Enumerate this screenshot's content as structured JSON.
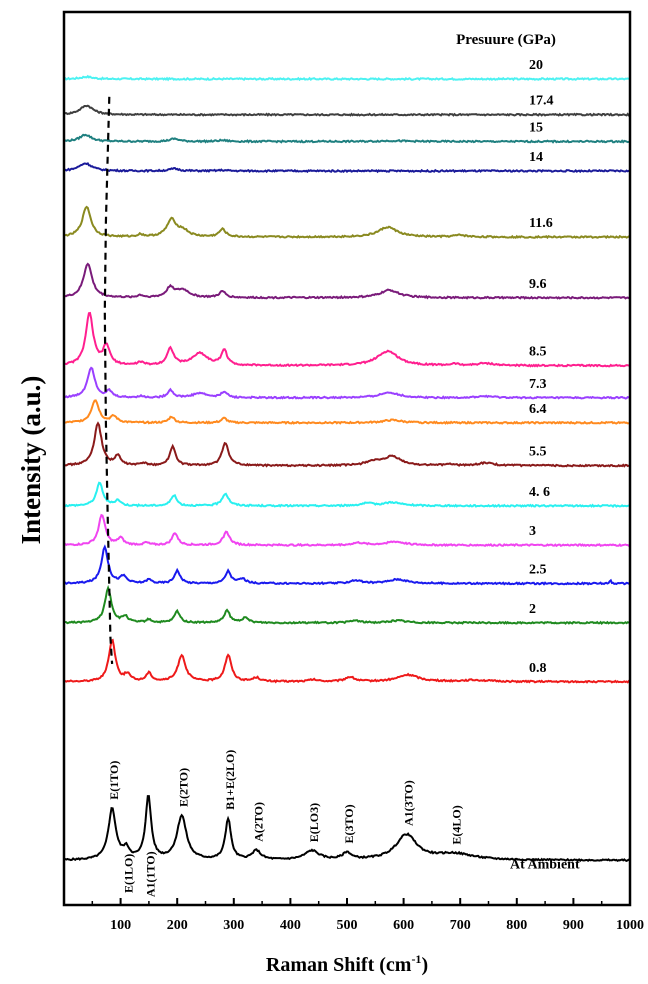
{
  "chart_data": {
    "type": "line",
    "title": "",
    "xlabel": "Raman Shift (cm",
    "xlabel_sup": "-1",
    "xlabel_close": ")",
    "ylabel": "Intensity (a.u.)",
    "xlim": [
      0,
      1000
    ],
    "x_ticks": [
      100,
      200,
      300,
      400,
      500,
      600,
      700,
      800,
      900,
      1000
    ],
    "x_tick_labels": [
      "100",
      "200",
      "300",
      "400",
      "500",
      "600",
      "700",
      "800",
      "900",
      "1000"
    ],
    "legend_title": "Presuure (GPa)",
    "grid": false,
    "series": [
      {
        "name": "20",
        "color": "#4df2f2",
        "offset": 0.925,
        "peaks": [
          [
            40,
            0.3,
            12
          ]
        ]
      },
      {
        "name": "17.4",
        "color": "#3f3f3f",
        "offset": 0.885,
        "peaks": [
          [
            40,
            1.2,
            14
          ]
        ]
      },
      {
        "name": "15",
        "color": "#1f8080",
        "offset": 0.855,
        "peaks": [
          [
            38,
            0.9,
            12
          ],
          [
            195,
            0.35,
            10
          ],
          [
            280,
            0.15,
            10
          ],
          [
            580,
            0.1,
            25
          ]
        ]
      },
      {
        "name": "14",
        "color": "#1a1a9a",
        "offset": 0.822,
        "peaks": [
          [
            38,
            1.0,
            14
          ],
          [
            195,
            0.3,
            10
          ],
          [
            280,
            0.1,
            10
          ]
        ]
      },
      {
        "name": "11.6",
        "color": "#8a8a20",
        "offset": 0.748,
        "peaks": [
          [
            40,
            4.0,
            9
          ],
          [
            135,
            0.3,
            6
          ],
          [
            190,
            2.2,
            10
          ],
          [
            210,
            0.8,
            12
          ],
          [
            280,
            1.0,
            7
          ],
          [
            572,
            1.3,
            20
          ],
          [
            700,
            0.25,
            12
          ]
        ]
      },
      {
        "name": "9.6",
        "color": "#7a1b7a",
        "offset": 0.68,
        "peaks": [
          [
            42,
            4.5,
            9
          ],
          [
            135,
            0.3,
            6
          ],
          [
            188,
            1.3,
            8
          ],
          [
            210,
            1.0,
            14
          ],
          [
            280,
            0.8,
            7
          ],
          [
            575,
            1.0,
            20
          ]
        ]
      },
      {
        "name": "8.5",
        "color": "#ff1f8f",
        "offset": 0.604,
        "peaks": [
          [
            45,
            6.8,
            8
          ],
          [
            75,
            2.5,
            7
          ],
          [
            135,
            0.4,
            6
          ],
          [
            188,
            2.2,
            7
          ],
          [
            240,
            1.6,
            16
          ],
          [
            283,
            2.0,
            6
          ],
          [
            572,
            1.9,
            22
          ],
          [
            690,
            0.2,
            8
          ],
          [
            745,
            0.3,
            16
          ]
        ]
      },
      {
        "name": "7.3",
        "color": "#9a40ff",
        "offset": 0.568,
        "peaks": [
          [
            48,
            4.0,
            8
          ],
          [
            80,
            0.8,
            6
          ],
          [
            135,
            0.2,
            6
          ],
          [
            188,
            1.0,
            6
          ],
          [
            240,
            0.6,
            15
          ],
          [
            283,
            0.8,
            6
          ],
          [
            575,
            0.7,
            20
          ],
          [
            745,
            0.2,
            15
          ]
        ]
      },
      {
        "name": "6.4",
        "color": "#ff8a1f",
        "offset": 0.54,
        "peaks": [
          [
            55,
            3.0,
            8
          ],
          [
            88,
            0.8,
            7
          ],
          [
            190,
            0.8,
            6
          ],
          [
            283,
            0.6,
            6
          ],
          [
            580,
            0.35,
            20
          ]
        ]
      },
      {
        "name": "5.5",
        "color": "#8a1a1a",
        "offset": 0.492,
        "peaks": [
          [
            60,
            5.5,
            8
          ],
          [
            95,
            1.2,
            6
          ],
          [
            140,
            0.3,
            6
          ],
          [
            192,
            2.5,
            6
          ],
          [
            285,
            3.0,
            7
          ],
          [
            545,
            0.5,
            14
          ],
          [
            580,
            1.2,
            18
          ],
          [
            680,
            0.2,
            8
          ],
          [
            745,
            0.35,
            16
          ]
        ]
      },
      {
        "name": "4. 6",
        "color": "#29f0f0",
        "offset": 0.447,
        "peaks": [
          [
            63,
            3.0,
            7
          ],
          [
            95,
            0.7,
            6
          ],
          [
            194,
            1.4,
            6
          ],
          [
            285,
            1.6,
            7
          ],
          [
            535,
            0.3,
            14
          ],
          [
            580,
            0.45,
            18
          ]
        ]
      },
      {
        "name": "3",
        "color": "#f045f0",
        "offset": 0.403,
        "peaks": [
          [
            67,
            4.0,
            7
          ],
          [
            100,
            0.9,
            6
          ],
          [
            145,
            0.3,
            6
          ],
          [
            196,
            1.6,
            6
          ],
          [
            287,
            1.7,
            7
          ],
          [
            520,
            0.3,
            12
          ],
          [
            585,
            0.45,
            20
          ]
        ]
      },
      {
        "name": "2.5",
        "color": "#1a1aee",
        "offset": 0.36,
        "peaks": [
          [
            72,
            4.8,
            7
          ],
          [
            105,
            0.9,
            7
          ],
          [
            150,
            0.5,
            6
          ],
          [
            200,
            1.7,
            6
          ],
          [
            290,
            1.6,
            6
          ],
          [
            315,
            0.6,
            8
          ],
          [
            515,
            0.4,
            12
          ],
          [
            590,
            0.55,
            20
          ],
          [
            965,
            0.5,
            1.5
          ]
        ]
      },
      {
        "name": "2",
        "color": "#1f8a1f",
        "offset": 0.316,
        "peaks": [
          [
            78,
            4.5,
            7
          ],
          [
            108,
            0.8,
            6
          ],
          [
            150,
            0.4,
            6
          ],
          [
            200,
            1.5,
            6
          ],
          [
            288,
            1.6,
            6
          ],
          [
            320,
            0.6,
            8
          ],
          [
            515,
            0.3,
            10
          ],
          [
            590,
            0.3,
            18
          ]
        ]
      },
      {
        "name": "0.8",
        "color": "#ee1a1a",
        "offset": 0.25,
        "peaks": [
          [
            85,
            5.5,
            7
          ],
          [
            112,
            0.9,
            6
          ],
          [
            150,
            1.1,
            6
          ],
          [
            208,
            3.5,
            8
          ],
          [
            290,
            3.5,
            7
          ],
          [
            340,
            0.5,
            8
          ],
          [
            440,
            0.25,
            10
          ],
          [
            505,
            0.6,
            10
          ],
          [
            608,
            0.9,
            22
          ],
          [
            725,
            0.2,
            30
          ]
        ]
      }
    ],
    "ambient": {
      "name": "At Ambient",
      "color": "#000000",
      "offset": 0.05,
      "peaks": [
        [
          85,
          6.7,
          8
        ],
        [
          110,
          1.3,
          7
        ],
        [
          149,
          8.3,
          6
        ],
        [
          208,
          5.8,
          10
        ],
        [
          290,
          5.4,
          6
        ],
        [
          340,
          1.2,
          9
        ],
        [
          438,
          1.2,
          15
        ],
        [
          500,
          0.9,
          9
        ],
        [
          605,
          3.3,
          22
        ],
        [
          690,
          0.8,
          40
        ]
      ],
      "assignments": [
        "E(1TO)",
        "E(1LO)",
        "A1(1TO)",
        "E(2TO)",
        "B1+E(2LO)",
        "A(2TO)",
        "E(LO3)",
        "E(3TO)",
        "A1(3TO)",
        "E(4LO)"
      ]
    },
    "dashed_guide": [
      [
        80,
        0.905
      ],
      [
        74,
        0.765
      ],
      [
        72,
        0.665
      ],
      [
        74,
        0.54
      ],
      [
        77,
        0.44
      ],
      [
        82,
        0.3
      ],
      [
        85,
        0.27
      ]
    ]
  }
}
